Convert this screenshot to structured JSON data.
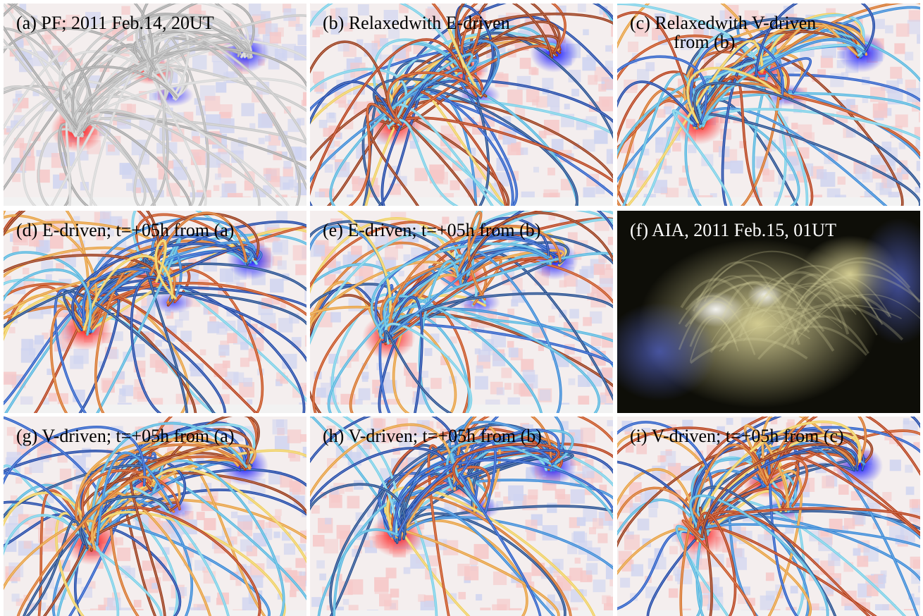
{
  "panels": [
    {
      "label": [
        "(a) PF; 2011 Feb.14, 20UT"
      ]
    },
    {
      "label": [
        "(b) Relaxedwith E-driven"
      ]
    },
    {
      "label": [
        "(c) Relaxedwith V-driven",
        "from (b)"
      ]
    },
    {
      "label": [
        "(d) E-driven; t=+05h from (a)"
      ]
    },
    {
      "label": [
        "(e) E-driven; t=+05h from (b)"
      ]
    },
    {
      "label": [
        "(f) AIA, 2011 Feb.15, 01UT"
      ]
    },
    {
      "label": [
        "(g) V-driven; t=+05h from (a)"
      ]
    },
    {
      "label": [
        "(h) V-driven; t=+05h from (b)"
      ]
    },
    {
      "label": [
        "(i) V-driven; t=+05h from (c)"
      ]
    }
  ]
}
